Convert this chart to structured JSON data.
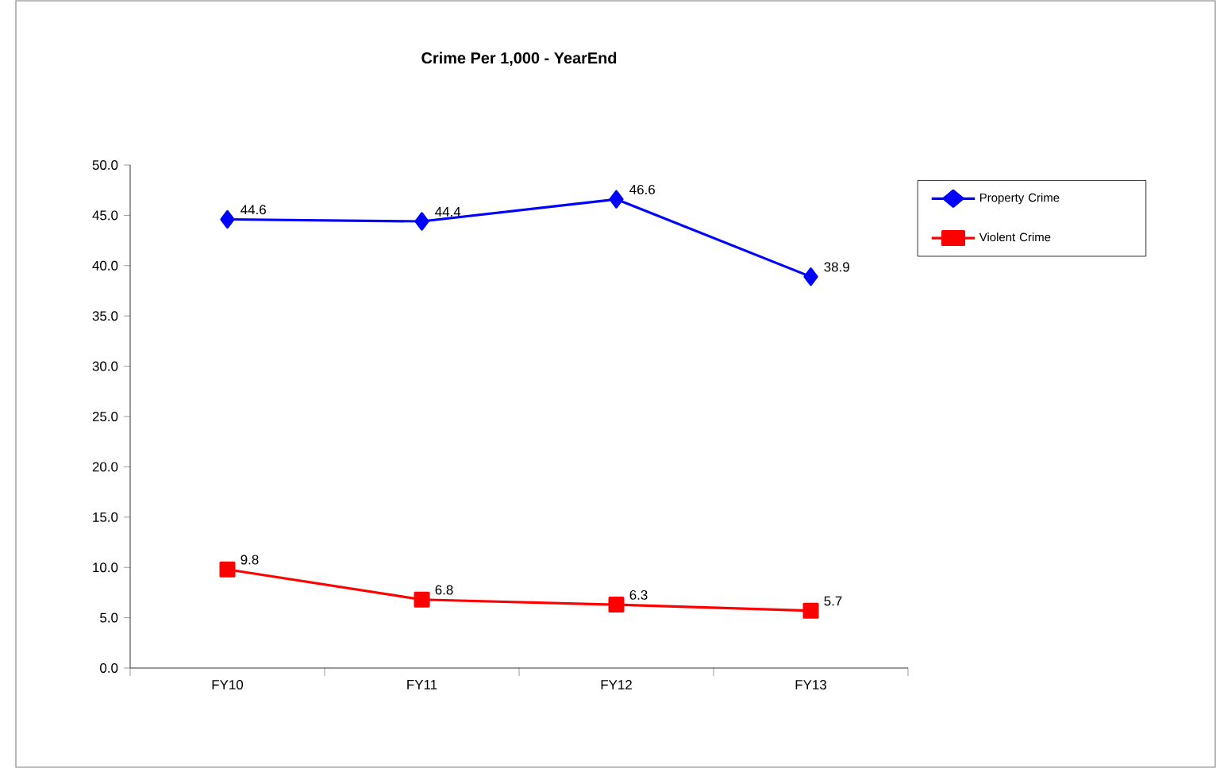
{
  "chart_data": {
    "type": "line",
    "title": "**Crime Per 1,000 - YearEnd**",
    "categories": [
      "FY10",
      "FY11",
      "FY12",
      "FY13"
    ],
    "series": [
      {
        "name": "Property Crime",
        "color": "#0000ff",
        "marker": "diamond",
        "values": [
          44.6,
          44.4,
          46.6,
          38.9
        ]
      },
      {
        "name": "Violent Crime",
        "color": "#ff0000",
        "marker": "square",
        "values": [
          9.8,
          6.8,
          6.3,
          5.7
        ]
      }
    ],
    "ylim": [
      0,
      50
    ],
    "yticks": [
      {
        "value": 0,
        "label": "0.0"
      },
      {
        "value": 5,
        "label": "5.0"
      },
      {
        "value": 10,
        "label": "10.0"
      },
      {
        "value": 15,
        "label": "15.0"
      },
      {
        "value": 20,
        "label": "20.0"
      },
      {
        "value": 25,
        "label": "25.0"
      },
      {
        "value": 30,
        "label": "30.0"
      },
      {
        "value": 35,
        "label": "35.0"
      },
      {
        "value": 40,
        "label": "40.0"
      },
      {
        "value": 45,
        "label": "45.0"
      },
      {
        "value": 50,
        "label": "50.0"
      }
    ],
    "data_labels": true,
    "grid": false,
    "legend": "right",
    "line_style": "solid"
  }
}
